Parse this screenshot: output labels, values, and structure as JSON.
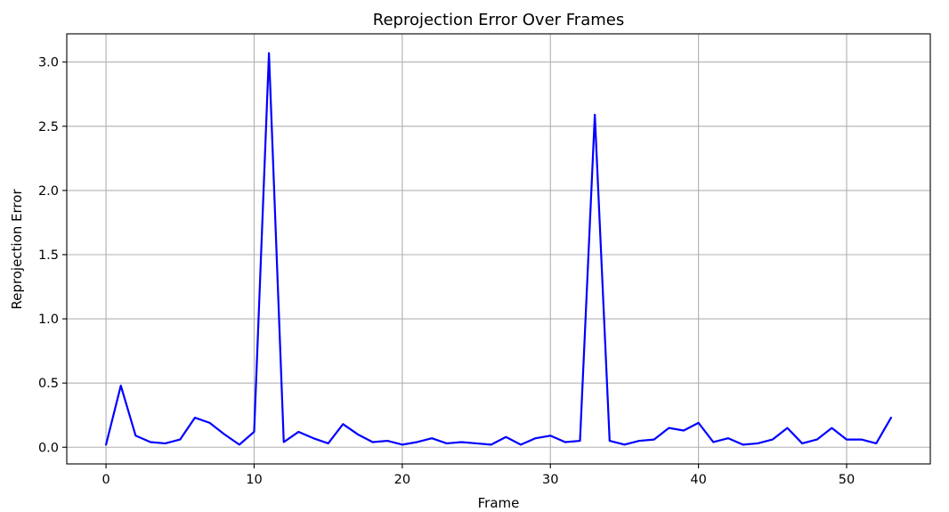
{
  "chart_data": {
    "type": "line",
    "title": "Reprojection Error Over Frames",
    "xlabel": "Frame",
    "ylabel": "Reprojection Error",
    "xlim": [
      -2.65,
      55.65
    ],
    "ylim": [
      -0.13,
      3.22
    ],
    "xticks": [
      0,
      10,
      20,
      30,
      40,
      50
    ],
    "xtick_labels": [
      "0",
      "10",
      "20",
      "30",
      "40",
      "50"
    ],
    "yticks": [
      0.0,
      0.5,
      1.0,
      1.5,
      2.0,
      2.5,
      3.0
    ],
    "ytick_labels": [
      "0.0",
      "0.5",
      "1.0",
      "1.5",
      "2.0",
      "2.5",
      "3.0"
    ],
    "grid": true,
    "series": [
      {
        "color": "#0000ff",
        "x": [
          0,
          1,
          2,
          3,
          4,
          5,
          6,
          7,
          8,
          9,
          10,
          11,
          12,
          13,
          14,
          15,
          16,
          17,
          18,
          19,
          20,
          21,
          22,
          23,
          24,
          25,
          26,
          27,
          28,
          29,
          30,
          31,
          32,
          33,
          34,
          35,
          36,
          37,
          38,
          39,
          40,
          41,
          42,
          43,
          44,
          45,
          46,
          47,
          48,
          49,
          50,
          51,
          52,
          53
        ],
        "y": [
          0.02,
          0.48,
          0.09,
          0.04,
          0.03,
          0.06,
          0.23,
          0.19,
          0.1,
          0.02,
          0.12,
          3.07,
          0.04,
          0.12,
          0.07,
          0.03,
          0.18,
          0.1,
          0.04,
          0.05,
          0.02,
          0.04,
          0.07,
          0.03,
          0.04,
          0.03,
          0.02,
          0.08,
          0.02,
          0.07,
          0.09,
          0.04,
          0.05,
          2.59,
          0.05,
          0.02,
          0.05,
          0.06,
          0.15,
          0.13,
          0.19,
          0.04,
          0.07,
          0.02,
          0.03,
          0.06,
          0.15,
          0.03,
          0.06,
          0.15,
          0.06,
          0.06,
          0.03,
          0.23
        ]
      }
    ],
    "colors": {
      "grid": "#b0b0b0",
      "axes": "#000000",
      "background": "#ffffff"
    }
  }
}
